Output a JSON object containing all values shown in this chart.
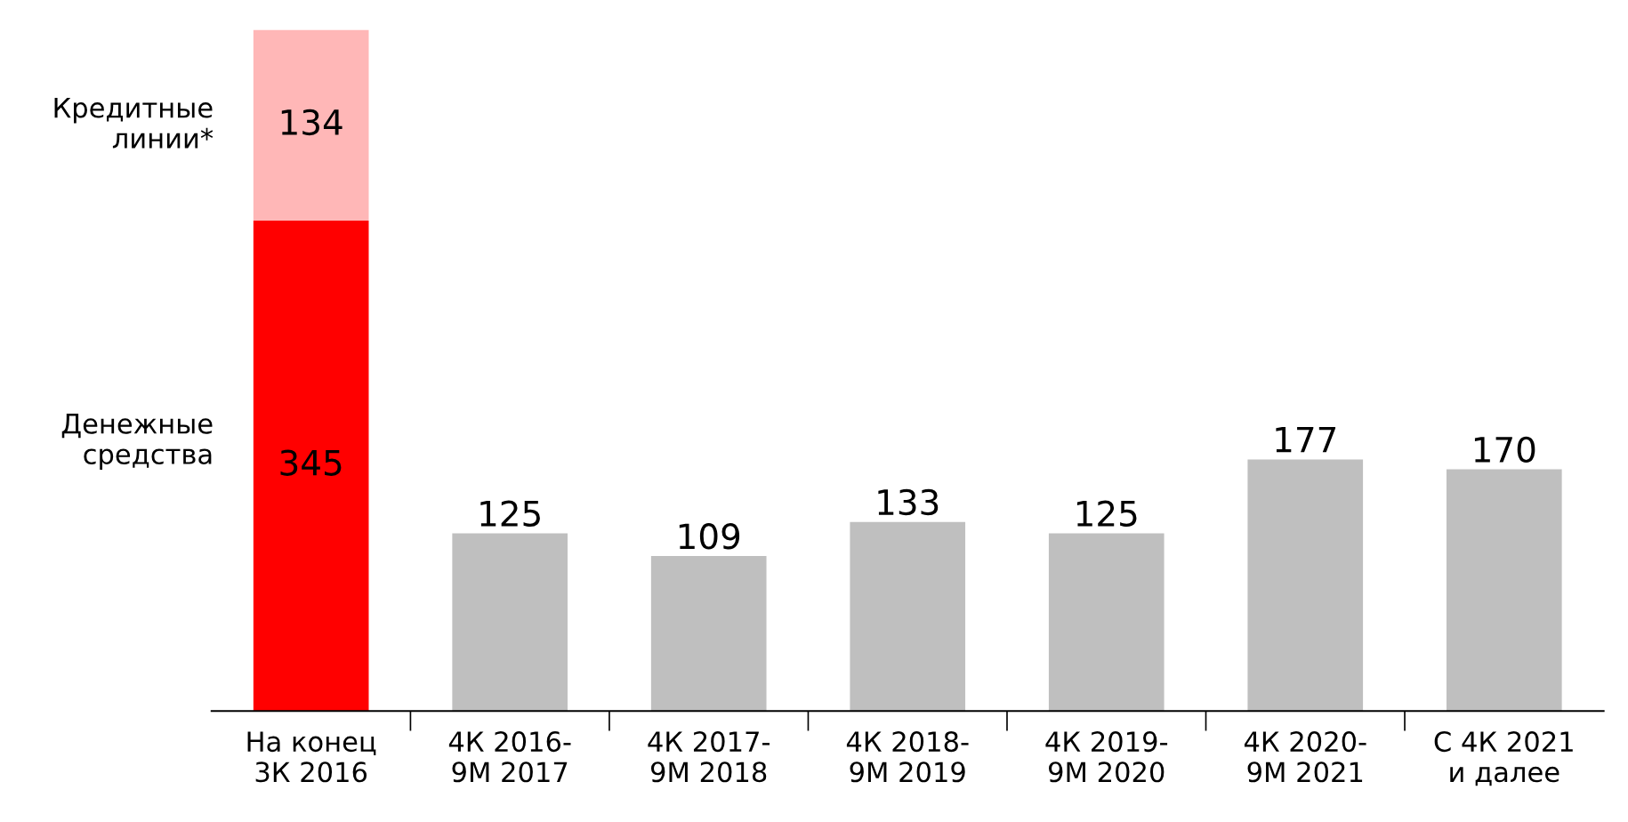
{
  "chart_data": {
    "type": "bar",
    "stacked": true,
    "data_labels": true,
    "grid": false,
    "legend": false,
    "categories": [
      "На конец\n3К 2016",
      "4К 2016-\n9М 2017",
      "4К 2017-\n9М 2018",
      "4К 2018-\n9М 2019",
      "4К 2019-\n9М 2020",
      "4К 2020-\n9М 2021",
      "С 4К 2021\nи далее"
    ],
    "series": [
      {
        "name": "Денежные\nсредства",
        "colors": [
          "#ff0000",
          "#bfbfbf",
          "#bfbfbf",
          "#bfbfbf",
          "#bfbfbf",
          "#bfbfbf",
          "#bfbfbf"
        ],
        "values": [
          345,
          125,
          109,
          133,
          125,
          177,
          170
        ]
      },
      {
        "name": "Кредитные\nлинии*",
        "color": "#ffb7b7",
        "values": [
          134,
          null,
          null,
          null,
          null,
          null,
          null
        ]
      }
    ]
  }
}
